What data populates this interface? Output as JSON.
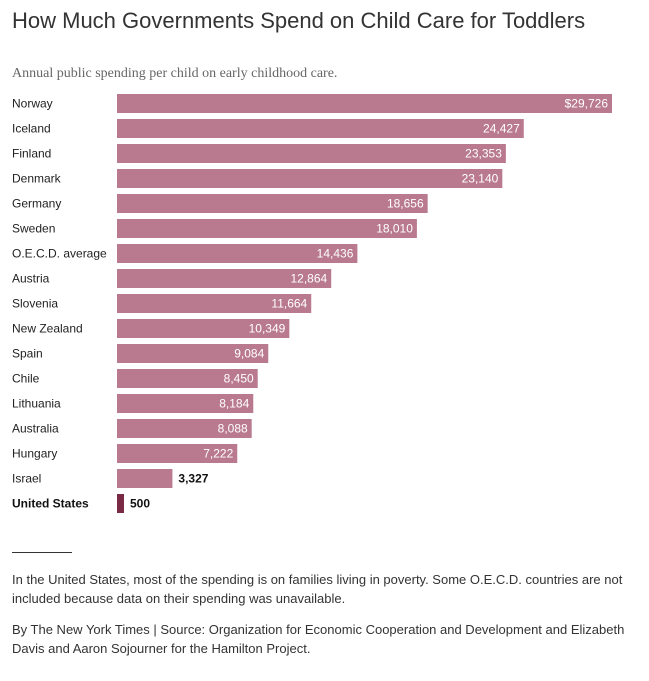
{
  "header": {
    "title": "How Much Governments Spend on Child Care for Toddlers",
    "subtitle": "Annual public spending per child on early childhood care."
  },
  "chart_data": {
    "type": "bar",
    "orientation": "horizontal",
    "title": "How Much Governments Spend on Child Care for Toddlers",
    "subtitle": "Annual public spending per child on early childhood care.",
    "xlabel": "",
    "ylabel": "",
    "xlim": [
      0,
      29726
    ],
    "grid": false,
    "legend": "none",
    "colors": {
      "bar": "#b97a8f",
      "highlight": "#7a2a45"
    },
    "categories": [
      "Norway",
      "Iceland",
      "Finland",
      "Denmark",
      "Germany",
      "Sweden",
      "O.E.C.D. average",
      "Austria",
      "Slovenia",
      "New Zealand",
      "Spain",
      "Chile",
      "Lithuania",
      "Australia",
      "Hungary",
      "Israel",
      "United States"
    ],
    "values": [
      29726,
      24427,
      23353,
      23140,
      18656,
      18010,
      14436,
      12864,
      11664,
      10349,
      9084,
      8450,
      8184,
      8088,
      7222,
      3327,
      500
    ],
    "value_labels": [
      "$29,726",
      "24,427",
      "23,353",
      "23,140",
      "18,656",
      "18,010",
      "14,436",
      "12,864",
      "11,664",
      "10,349",
      "9,084",
      "8,450",
      "8,184",
      "8,088",
      "7,222",
      "3,327",
      "500"
    ],
    "highlight": "United States"
  },
  "footer": {
    "note": "In the United States, most of the spending is on families living in poverty. Some O.E.C.D. countries are not included because data on their spending was unavailable.",
    "credit": "By The New York Times | Source: Organization for Economic Cooperation and Development and Elizabeth Davis and Aaron Sojourner for the Hamilton Project."
  }
}
